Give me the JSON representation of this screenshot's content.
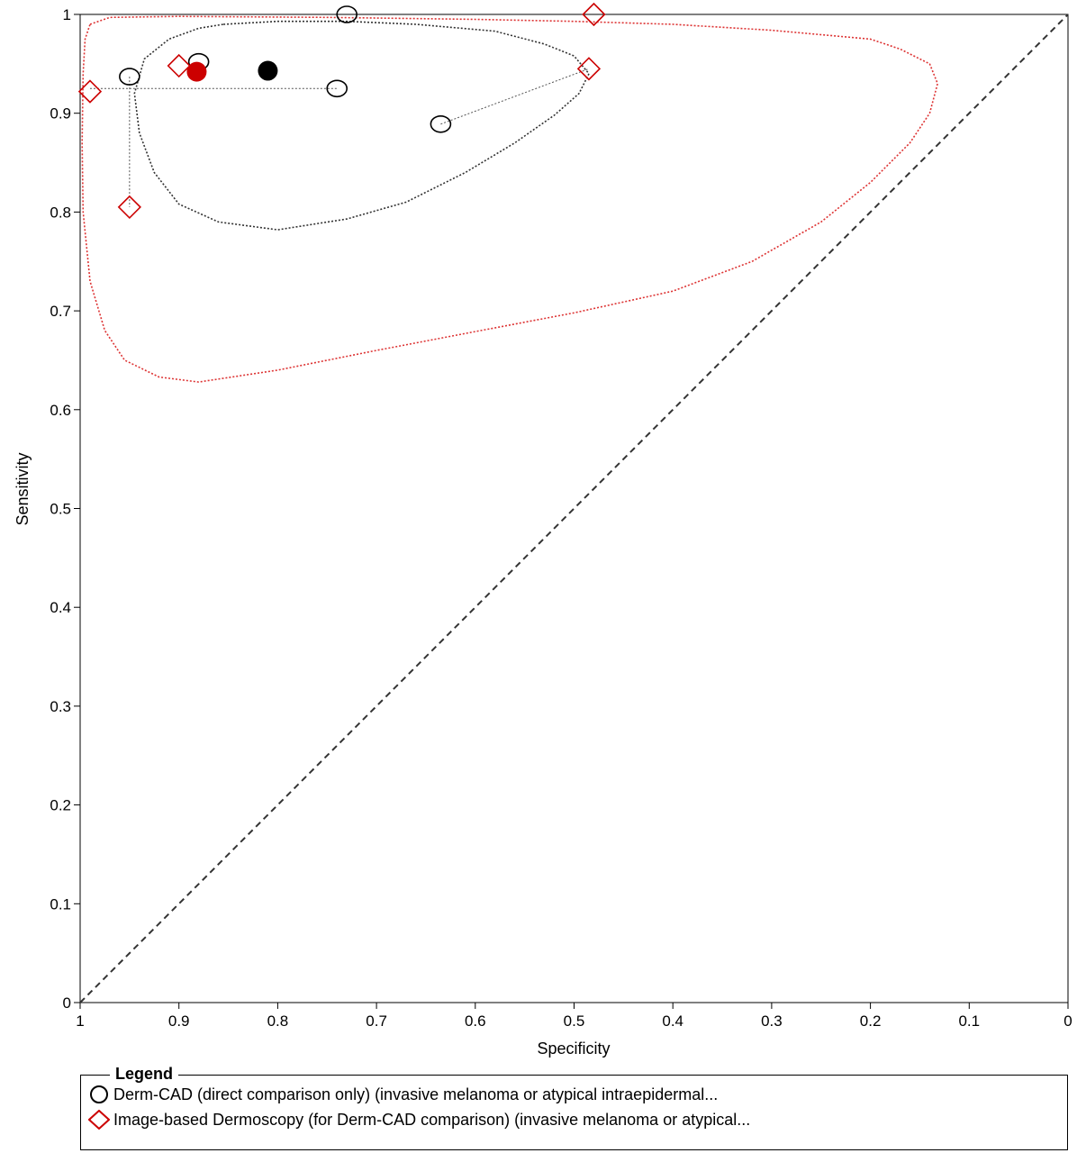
{
  "chart_data": {
    "type": "scatter",
    "xlabel": "Specificity",
    "ylabel": "Sensitivity",
    "xlim": [
      1,
      0
    ],
    "ylim": [
      0,
      1
    ],
    "x_ticks": [
      "1",
      "0.9",
      "0.8",
      "0.7",
      "0.6",
      "0.5",
      "0.4",
      "0.3",
      "0.2",
      "0.1",
      "0"
    ],
    "y_ticks": [
      "0",
      "0.1",
      "0.2",
      "0.3",
      "0.4",
      "0.5",
      "0.6",
      "0.7",
      "0.8",
      "0.9",
      "1"
    ],
    "reference_line": "diagonal dashed from (1,0) to (0,1)",
    "series": [
      {
        "name": "Derm-CAD (direct comparison only) (invasive melanoma or atypical intraepidermal...",
        "marker": "circle",
        "color": "#000000",
        "points": [
          {
            "specificity": 0.73,
            "sensitivity": 1.0
          },
          {
            "specificity": 0.88,
            "sensitivity": 0.952
          },
          {
            "specificity": 0.95,
            "sensitivity": 0.937
          },
          {
            "specificity": 0.74,
            "sensitivity": 0.925
          },
          {
            "specificity": 0.635,
            "sensitivity": 0.889
          }
        ],
        "summary_point": {
          "specificity": 0.81,
          "sensitivity": 0.943
        },
        "confidence_region": [
          [
            0.855,
            0.99
          ],
          [
            0.8,
            0.993
          ],
          [
            0.73,
            0.993
          ],
          [
            0.66,
            0.99
          ],
          [
            0.58,
            0.983
          ],
          [
            0.53,
            0.97
          ],
          [
            0.5,
            0.958
          ],
          [
            0.485,
            0.94
          ],
          [
            0.495,
            0.92
          ],
          [
            0.52,
            0.898
          ],
          [
            0.56,
            0.87
          ],
          [
            0.61,
            0.84
          ],
          [
            0.67,
            0.81
          ],
          [
            0.73,
            0.793
          ],
          [
            0.8,
            0.782
          ],
          [
            0.86,
            0.79
          ],
          [
            0.9,
            0.808
          ],
          [
            0.925,
            0.84
          ],
          [
            0.94,
            0.88
          ],
          [
            0.945,
            0.92
          ],
          [
            0.935,
            0.955
          ],
          [
            0.91,
            0.975
          ],
          [
            0.88,
            0.986
          ],
          [
            0.855,
            0.99
          ]
        ]
      },
      {
        "name": "Image-based Dermoscopy (for Derm-CAD comparison) (invasive melanoma or atypical...",
        "marker": "diamond",
        "color": "#cc0000",
        "points": [
          {
            "specificity": 0.48,
            "sensitivity": 1.0
          },
          {
            "specificity": 0.9,
            "sensitivity": 0.948
          },
          {
            "specificity": 0.485,
            "sensitivity": 0.945
          },
          {
            "specificity": 0.99,
            "sensitivity": 0.922
          },
          {
            "specificity": 0.95,
            "sensitivity": 0.805
          }
        ],
        "summary_point": {
          "specificity": 0.882,
          "sensitivity": 0.942
        },
        "confidence_region": [
          [
            0.99,
            0.99
          ],
          [
            0.97,
            0.997
          ],
          [
            0.9,
            0.998
          ],
          [
            0.75,
            0.997
          ],
          [
            0.6,
            0.995
          ],
          [
            0.5,
            0.993
          ],
          [
            0.4,
            0.99
          ],
          [
            0.3,
            0.984
          ],
          [
            0.2,
            0.975
          ],
          [
            0.17,
            0.965
          ],
          [
            0.14,
            0.95
          ],
          [
            0.132,
            0.93
          ],
          [
            0.14,
            0.9
          ],
          [
            0.16,
            0.87
          ],
          [
            0.2,
            0.83
          ],
          [
            0.25,
            0.79
          ],
          [
            0.32,
            0.75
          ],
          [
            0.4,
            0.72
          ],
          [
            0.5,
            0.698
          ],
          [
            0.6,
            0.679
          ],
          [
            0.7,
            0.66
          ],
          [
            0.8,
            0.64
          ],
          [
            0.88,
            0.628
          ],
          [
            0.92,
            0.633
          ],
          [
            0.955,
            0.65
          ],
          [
            0.975,
            0.68
          ],
          [
            0.99,
            0.73
          ],
          [
            0.997,
            0.8
          ],
          [
            0.998,
            0.87
          ],
          [
            0.997,
            0.94
          ],
          [
            0.995,
            0.975
          ],
          [
            0.99,
            0.99
          ]
        ]
      }
    ],
    "links": [
      {
        "from": [
          0.95,
          0.925
        ],
        "to": [
          0.74,
          0.925
        ]
      },
      {
        "from": [
          0.95,
          0.937
        ],
        "to": [
          0.95,
          0.805
        ]
      },
      {
        "from": [
          0.99,
          0.925
        ],
        "to": [
          0.95,
          0.925
        ]
      },
      {
        "from": [
          0.635,
          0.889
        ],
        "to": [
          0.485,
          0.945
        ]
      }
    ],
    "legend": {
      "title": "Legend",
      "placement": "bottom",
      "entries": [
        {
          "marker": "circle",
          "color": "#000000",
          "label": "Derm-CAD (direct comparison only) (invasive melanoma or atypical intraepidermal..."
        },
        {
          "marker": "diamond",
          "color": "#cc0000",
          "label": "Image-based Dermoscopy (for Derm-CAD comparison) (invasive melanoma or atypical..."
        }
      ]
    }
  }
}
